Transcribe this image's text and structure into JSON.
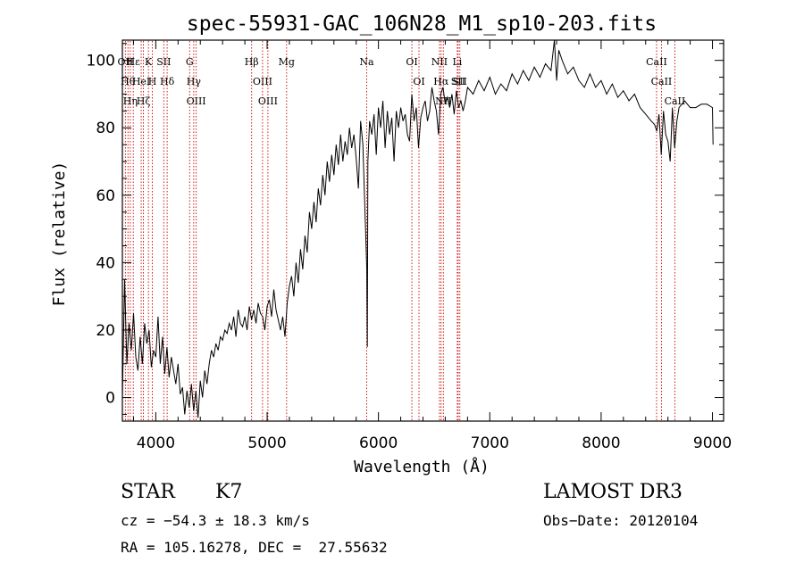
{
  "chart_data": {
    "type": "line",
    "title": "spec-55931-GAC_106N28_M1_sp10-203.fits",
    "xlabel": "Wavelength (Å)",
    "ylabel": "Flux (relative)",
    "xlim": [
      3700,
      9100
    ],
    "ylim": [
      -7,
      106
    ],
    "xticks": [
      "4000",
      "5000",
      "6000",
      "7000",
      "8000",
      "9000"
    ],
    "yticks": [
      "0",
      "20",
      "40",
      "60",
      "80",
      "100"
    ],
    "grid": false,
    "series": [
      {
        "x": [
          3700,
          3720,
          3740,
          3760,
          3780,
          3800,
          3820,
          3840,
          3860,
          3880,
          3900,
          3920,
          3940,
          3960,
          3980,
          4000,
          4020,
          4040,
          4060,
          4080,
          4100,
          4120,
          4140,
          4160,
          4180,
          4200,
          4220,
          4240,
          4260,
          4280,
          4300,
          4320,
          4340,
          4360,
          4380,
          4400,
          4420,
          4440,
          4460,
          4480,
          4500,
          4520,
          4540,
          4560,
          4580,
          4600,
          4620,
          4640,
          4660,
          4680,
          4700,
          4720,
          4740,
          4760,
          4780,
          4800,
          4820,
          4840,
          4860,
          4880,
          4900,
          4920,
          4940,
          4960,
          4980,
          5000,
          5020,
          5040,
          5060,
          5080,
          5100,
          5120,
          5140,
          5160,
          5180,
          5200,
          5220,
          5240,
          5260,
          5280,
          5300,
          5320,
          5340,
          5360,
          5380,
          5400,
          5420,
          5440,
          5460,
          5480,
          5500,
          5520,
          5540,
          5560,
          5580,
          5600,
          5620,
          5640,
          5660,
          5680,
          5700,
          5720,
          5740,
          5760,
          5780,
          5800,
          5820,
          5840,
          5860,
          5880,
          5895,
          5900,
          5905,
          5920,
          5940,
          5960,
          5980,
          6000,
          6020,
          6040,
          6060,
          6080,
          6100,
          6120,
          6140,
          6160,
          6180,
          6200,
          6220,
          6240,
          6260,
          6280,
          6300,
          6320,
          6340,
          6360,
          6380,
          6400,
          6420,
          6440,
          6460,
          6480,
          6500,
          6520,
          6540,
          6560,
          6580,
          6600,
          6620,
          6640,
          6660,
          6680,
          6700,
          6720,
          6740,
          6760,
          6780,
          6800,
          6850,
          6900,
          6950,
          7000,
          7050,
          7100,
          7150,
          7200,
          7250,
          7300,
          7350,
          7400,
          7450,
          7500,
          7550,
          7580,
          7600,
          7620,
          7650,
          7700,
          7750,
          7800,
          7850,
          7900,
          7950,
          8000,
          8050,
          8100,
          8150,
          8200,
          8250,
          8300,
          8350,
          8400,
          8450,
          8480,
          8500,
          8520,
          8540,
          8560,
          8580,
          8600,
          8620,
          8640,
          8660,
          8680,
          8700,
          8750,
          8800,
          8850,
          8900,
          8950,
          9000,
          9005
        ],
        "y": [
          0,
          35,
          10,
          22,
          14,
          25,
          12,
          8,
          18,
          10,
          22,
          16,
          20,
          9,
          14,
          12,
          24,
          10,
          18,
          7,
          15,
          6,
          12,
          8,
          4,
          10,
          1,
          3,
          -5,
          2,
          -3,
          4,
          -4,
          2,
          -6,
          5,
          0,
          8,
          4,
          10,
          14,
          12,
          16,
          14,
          18,
          17,
          20,
          19,
          22,
          20,
          24,
          18,
          26,
          22,
          21,
          24,
          20,
          27,
          23,
          26,
          22,
          28,
          25,
          24,
          20,
          27,
          29,
          24,
          32,
          26,
          23,
          20,
          24,
          18,
          28,
          33,
          36,
          30,
          40,
          34,
          44,
          38,
          48,
          43,
          55,
          50,
          58,
          52,
          62,
          57,
          66,
          60,
          70,
          64,
          72,
          66,
          75,
          69,
          78,
          70,
          76,
          72,
          80,
          74,
          78,
          71,
          62,
          82,
          75,
          54,
          38,
          15,
          70,
          82,
          78,
          84,
          72,
          86,
          80,
          88,
          74,
          85,
          78,
          83,
          70,
          85,
          80,
          86,
          82,
          84,
          78,
          76,
          90,
          82,
          86,
          74,
          83,
          86,
          88,
          82,
          85,
          92,
          88,
          85,
          78,
          90,
          92,
          87,
          89,
          86,
          90,
          84,
          91,
          86,
          88,
          85,
          88,
          92,
          90,
          94,
          91,
          95,
          90,
          93,
          91,
          96,
          93,
          97,
          94,
          98,
          95,
          99,
          97,
          106,
          94,
          103,
          100,
          96,
          98,
          94,
          92,
          96,
          92,
          94,
          90,
          93,
          89,
          91,
          88,
          90,
          86,
          84,
          82,
          81,
          79,
          84,
          72,
          85,
          78,
          76,
          70,
          86,
          74,
          82,
          86,
          88,
          86,
          86,
          87,
          87,
          86,
          75
        ]
      }
    ],
    "lines": [
      {
        "wave": 3727,
        "label": "OII"
      },
      {
        "wave": 3750,
        "label": "Hθ"
      },
      {
        "wave": 3771,
        "label": "Hη"
      },
      {
        "wave": 3798,
        "label": "Hε"
      },
      {
        "wave": 3869,
        "label": "HeI"
      },
      {
        "wave": 3889,
        "label": "Hζ"
      },
      {
        "wave": 3934,
        "label": "K"
      },
      {
        "wave": 3969,
        "label": "H"
      },
      {
        "wave": 4072,
        "label": "SII"
      },
      {
        "wave": 4102,
        "label": "Hδ"
      },
      {
        "wave": 4304,
        "label": "G"
      },
      {
        "wave": 4341,
        "label": "Hγ"
      },
      {
        "wave": 4363,
        "label": "OIII"
      },
      {
        "wave": 4861,
        "label": "Hβ"
      },
      {
        "wave": 4959,
        "label": "OIII"
      },
      {
        "wave": 5007,
        "label": "OIII"
      },
      {
        "wave": 5175,
        "label": "Mg"
      },
      {
        "wave": 5894,
        "label": "Na"
      },
      {
        "wave": 6300,
        "label": "OI"
      },
      {
        "wave": 6364,
        "label": "OI"
      },
      {
        "wave": 6548,
        "label": "NII"
      },
      {
        "wave": 6563,
        "label": "Hα"
      },
      {
        "wave": 6583,
        "label": "NII"
      },
      {
        "wave": 6708,
        "label": "Li"
      },
      {
        "wave": 6716,
        "label": "SII"
      },
      {
        "wave": 6731,
        "label": "SII"
      },
      {
        "wave": 8498,
        "label": "CaII"
      },
      {
        "wave": 8542,
        "label": "CaII"
      },
      {
        "wave": 8662,
        "label": "CaII"
      }
    ]
  },
  "info": {
    "class_label": "STAR",
    "subclass": "K7",
    "survey": "LAMOST DR3",
    "cz": "cz = −54.3 ± 18.3 km/s",
    "obs_date": "Obs−Date: 20120104",
    "radec": "RA = 105.16278, DEC =  27.55632"
  },
  "colors": {
    "axis": "#000000",
    "spectrum": "#000000",
    "lines": "#cc0000"
  }
}
